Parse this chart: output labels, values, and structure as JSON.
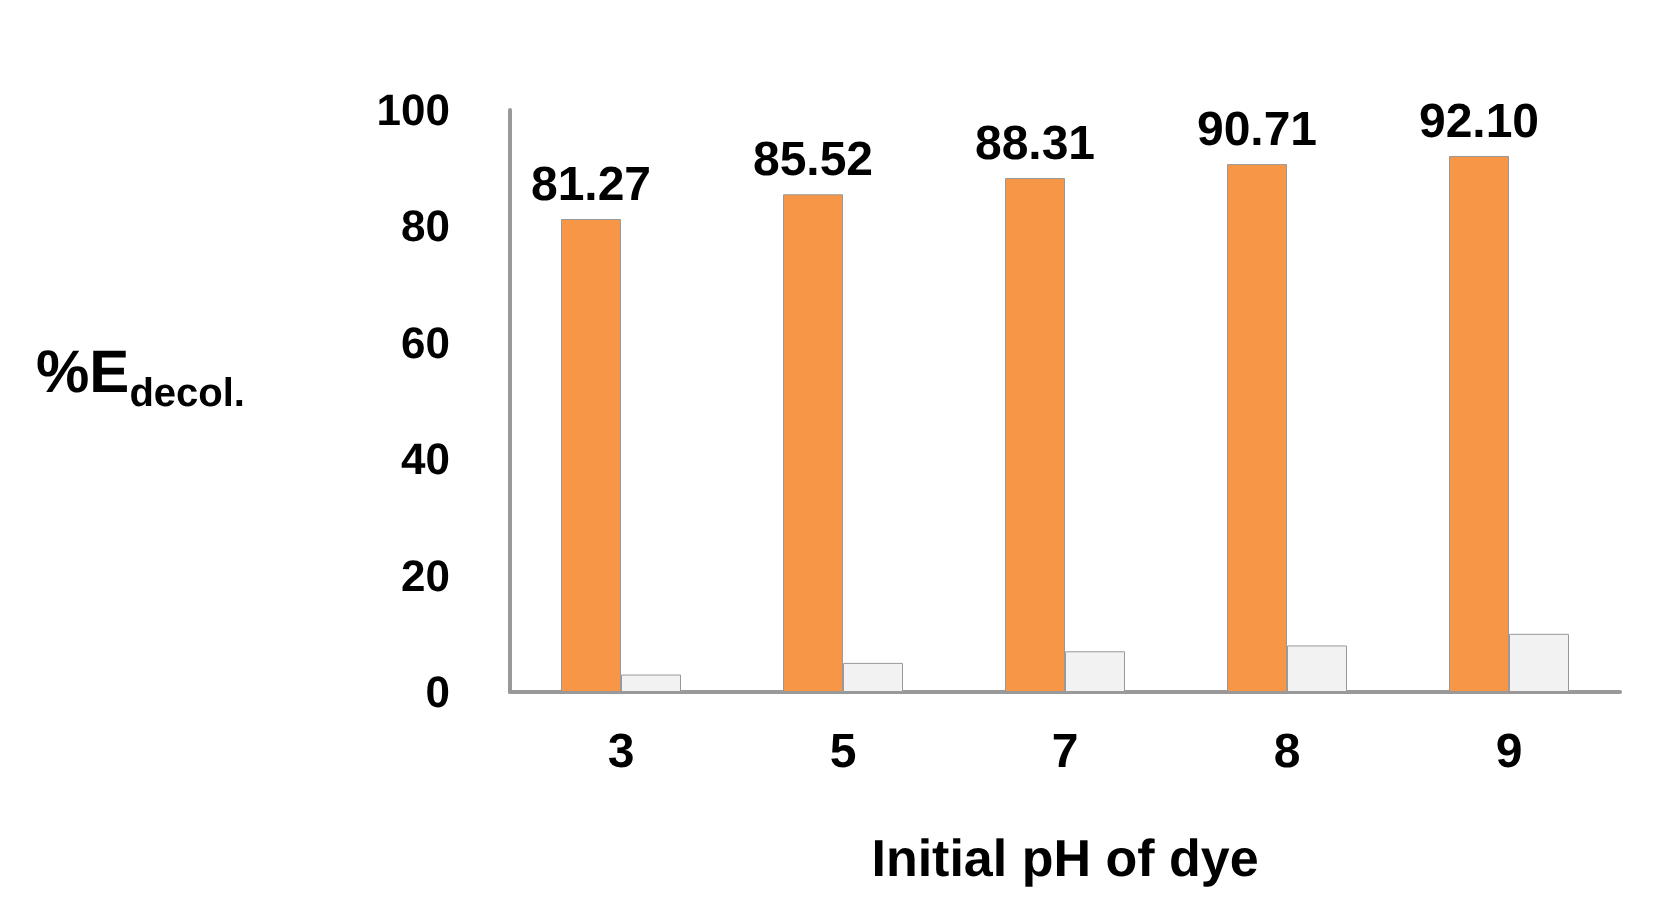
{
  "chart_data": {
    "type": "bar",
    "xlabel": "Initial pH of dye",
    "ylabel": "%E$_{decol.}$",
    "categories": [
      "3",
      "5",
      "7",
      "8",
      "9"
    ],
    "series": [
      {
        "color": "#f79646",
        "values": [
          81.27,
          85.52,
          88.31,
          90.71,
          92.1
        ],
        "value_labels": [
          "81.27",
          "85.52",
          "88.31",
          "90.71",
          "92.10"
        ]
      },
      {
        "color": "#f2f2f2",
        "values": [
          3,
          5,
          7,
          8,
          10
        ]
      }
    ],
    "ylim": [
      0,
      100
    ],
    "yticks": [
      0,
      20,
      40,
      60,
      80,
      100
    ],
    "grid": false
  }
}
